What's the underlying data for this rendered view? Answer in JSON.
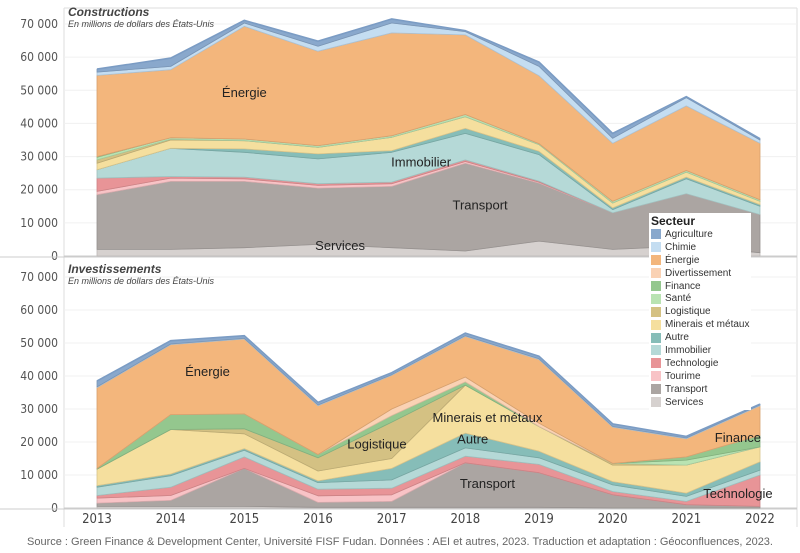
{
  "chart_data": [
    {
      "type": "area",
      "stacked": true,
      "title": "Constructions",
      "subtitle": "En millions de dollars des États-Unis",
      "x": [
        2013,
        2014,
        2015,
        2016,
        2017,
        2018,
        2019,
        2020,
        2021,
        2022
      ],
      "ylim": [
        0,
        70000
      ],
      "yticks": [
        "0",
        "10 000",
        "20 000",
        "30 000",
        "40 000",
        "50 000",
        "60 000",
        "70 000"
      ],
      "series": [
        {
          "name": "Services",
          "values": [
            2000,
            2000,
            2500,
            3500,
            2500,
            1500,
            4500,
            2000,
            3000,
            1000
          ]
        },
        {
          "name": "Transport",
          "values": [
            16500,
            20500,
            20000,
            17000,
            18500,
            26500,
            17500,
            11000,
            15800,
            11500
          ]
        },
        {
          "name": "Tourime",
          "values": [
            1000,
            1000,
            800,
            800,
            800,
            500,
            300,
            0,
            0,
            0
          ]
        },
        {
          "name": "Technologie",
          "values": [
            4000,
            500,
            500,
            500,
            500,
            500,
            300,
            0,
            0,
            0
          ]
        },
        {
          "name": "Immobilier",
          "values": [
            2500,
            8500,
            7500,
            7500,
            9000,
            8000,
            8000,
            1000,
            4500,
            2500
          ]
        },
        {
          "name": "Autre",
          "values": [
            0,
            0,
            1000,
            1500,
            500,
            1500,
            1000,
            500,
            500,
            500
          ]
        },
        {
          "name": "Minerais et métaux",
          "values": [
            2000,
            2500,
            2500,
            2000,
            4000,
            3500,
            2000,
            1500,
            1500,
            1000
          ]
        },
        {
          "name": "Logistique",
          "values": [
            1000,
            200,
            0,
            0,
            0,
            0,
            0,
            0,
            0,
            0
          ]
        },
        {
          "name": "Santé",
          "values": [
            800,
            500,
            500,
            500,
            500,
            700,
            300,
            500,
            500,
            500
          ]
        },
        {
          "name": "Finance",
          "values": [
            200,
            0,
            0,
            0,
            0,
            0,
            0,
            0,
            0,
            0
          ]
        },
        {
          "name": "Divertissement",
          "values": [
            0,
            0,
            0,
            0,
            0,
            0,
            0,
            0,
            0,
            0
          ]
        },
        {
          "name": "Énergie",
          "values": [
            24500,
            20500,
            34000,
            28500,
            31000,
            24000,
            20500,
            17500,
            19500,
            17000
          ]
        },
        {
          "name": "Chimie",
          "values": [
            1000,
            1000,
            1000,
            1500,
            3000,
            1000,
            2800,
            1500,
            2500,
            1000
          ]
        },
        {
          "name": "Agriculture",
          "values": [
            900,
            2500,
            800,
            1500,
            1200,
            300,
            1300,
            1500,
            300,
            400
          ]
        }
      ],
      "annotations": [
        {
          "text": "Énergie",
          "x": 2015,
          "y": 48000
        },
        {
          "text": "Immobilier",
          "x": 2017.4,
          "y": 27000
        },
        {
          "text": "Transport",
          "x": 2018.2,
          "y": 14000
        },
        {
          "text": "Services",
          "x": 2016.3,
          "y": 1800
        }
      ]
    },
    {
      "type": "area",
      "stacked": true,
      "title": "Investissements",
      "subtitle": "En millions de dollars des États-Unis",
      "x": [
        2013,
        2014,
        2015,
        2016,
        2017,
        2018,
        2019,
        2020,
        2021,
        2022
      ],
      "ylim": [
        0,
        70000
      ],
      "yticks": [
        "0",
        "10 000",
        "20 000",
        "30 000",
        "40 000",
        "50 000",
        "60 000",
        "70 000"
      ],
      "xlabel_ticks": [
        "2013",
        "2014",
        "2015",
        "2016",
        "2017",
        "2018",
        "2019",
        "2020",
        "2021",
        "2022"
      ],
      "series": [
        {
          "name": "Services",
          "values": [
            500,
            500,
            500,
            200,
            200,
            200,
            200,
            0,
            0,
            0
          ]
        },
        {
          "name": "Transport",
          "values": [
            1000,
            1800,
            11500,
            1500,
            1800,
            13500,
            10500,
            4000,
            1000,
            500
          ]
        },
        {
          "name": "Tourime",
          "values": [
            1500,
            1500,
            0,
            2000,
            2000,
            0,
            0,
            0,
            0,
            0
          ]
        },
        {
          "name": "Technologie",
          "values": [
            800,
            2500,
            3500,
            2000,
            2000,
            2000,
            2500,
            1000,
            1000,
            9500
          ]
        },
        {
          "name": "Immobilier",
          "values": [
            2500,
            3500,
            2000,
            2000,
            2500,
            2500,
            2000,
            2000,
            1500,
            1500
          ]
        },
        {
          "name": "Autre",
          "values": [
            500,
            500,
            500,
            500,
            3500,
            4500,
            2000,
            1000,
            1000,
            2500
          ]
        },
        {
          "name": "Minerais et métaux",
          "values": [
            5000,
            13500,
            4500,
            3000,
            3000,
            14500,
            7500,
            5000,
            8500,
            4500
          ]
        },
        {
          "name": "Logistique",
          "values": [
            0,
            0,
            1500,
            4000,
            11000,
            0,
            0,
            500,
            0,
            0
          ]
        },
        {
          "name": "Santé",
          "values": [
            0,
            0,
            0,
            0,
            0,
            0,
            0,
            0,
            1500,
            0
          ]
        },
        {
          "name": "Finance",
          "values": [
            200,
            4500,
            4500,
            1000,
            2000,
            1000,
            0,
            0,
            1000,
            3500
          ]
        },
        {
          "name": "Divertissement",
          "values": [
            0,
            0,
            0,
            0,
            2000,
            1500,
            1000,
            0,
            0,
            0
          ]
        },
        {
          "name": "Énergie",
          "values": [
            24500,
            21200,
            22700,
            14800,
            10200,
            12300,
            19300,
            11000,
            5500,
            9000
          ]
        },
        {
          "name": "Chimie",
          "values": [
            200,
            200,
            200,
            200,
            200,
            200,
            200,
            200,
            200,
            200
          ]
        },
        {
          "name": "Agriculture",
          "values": [
            1800,
            1000,
            800,
            800,
            600,
            800,
            800,
            800,
            500,
            300
          ]
        }
      ],
      "annotations": [
        {
          "text": "Énergie",
          "x": 2014.5,
          "y": 40000
        },
        {
          "text": "Logistique",
          "x": 2016.8,
          "y": 18000
        },
        {
          "text": "Minerais et métaux",
          "x": 2018.3,
          "y": 26000
        },
        {
          "text": "Autre",
          "x": 2018.1,
          "y": 19500
        },
        {
          "text": "Transport",
          "x": 2018.3,
          "y": 6000
        },
        {
          "text": "Finance",
          "x": 2021.7,
          "y": 20000
        },
        {
          "text": "Technologie",
          "x": 2021.7,
          "y": 3000
        }
      ]
    }
  ],
  "legend": {
    "title": "Secteur",
    "items": [
      {
        "name": "Agriculture",
        "color": "#89a8cc"
      },
      {
        "name": "Chimie",
        "color": "#c4ddf1"
      },
      {
        "name": "Énergie",
        "color": "#f3b67c"
      },
      {
        "name": "Divertissement",
        "color": "#fad2b4"
      },
      {
        "name": "Finance",
        "color": "#94c78e"
      },
      {
        "name": "Santé",
        "color": "#b9e3b2"
      },
      {
        "name": "Logistique",
        "color": "#d4c183"
      },
      {
        "name": "Minerais et métaux",
        "color": "#f5df9e"
      },
      {
        "name": "Autre",
        "color": "#86bdb8"
      },
      {
        "name": "Immobilier",
        "color": "#b5d9d7"
      },
      {
        "name": "Technologie",
        "color": "#e89497"
      },
      {
        "name": "Tourime",
        "color": "#f8c3c6"
      },
      {
        "name": "Transport",
        "color": "#aba5a2"
      },
      {
        "name": "Services",
        "color": "#d6d1cf"
      }
    ]
  },
  "source": "Source : Green Finance & Development Center, Université FISF Fudan. Données : AEI et autres, 2023. Traduction et adaptation : Géoconfluences, 2023."
}
